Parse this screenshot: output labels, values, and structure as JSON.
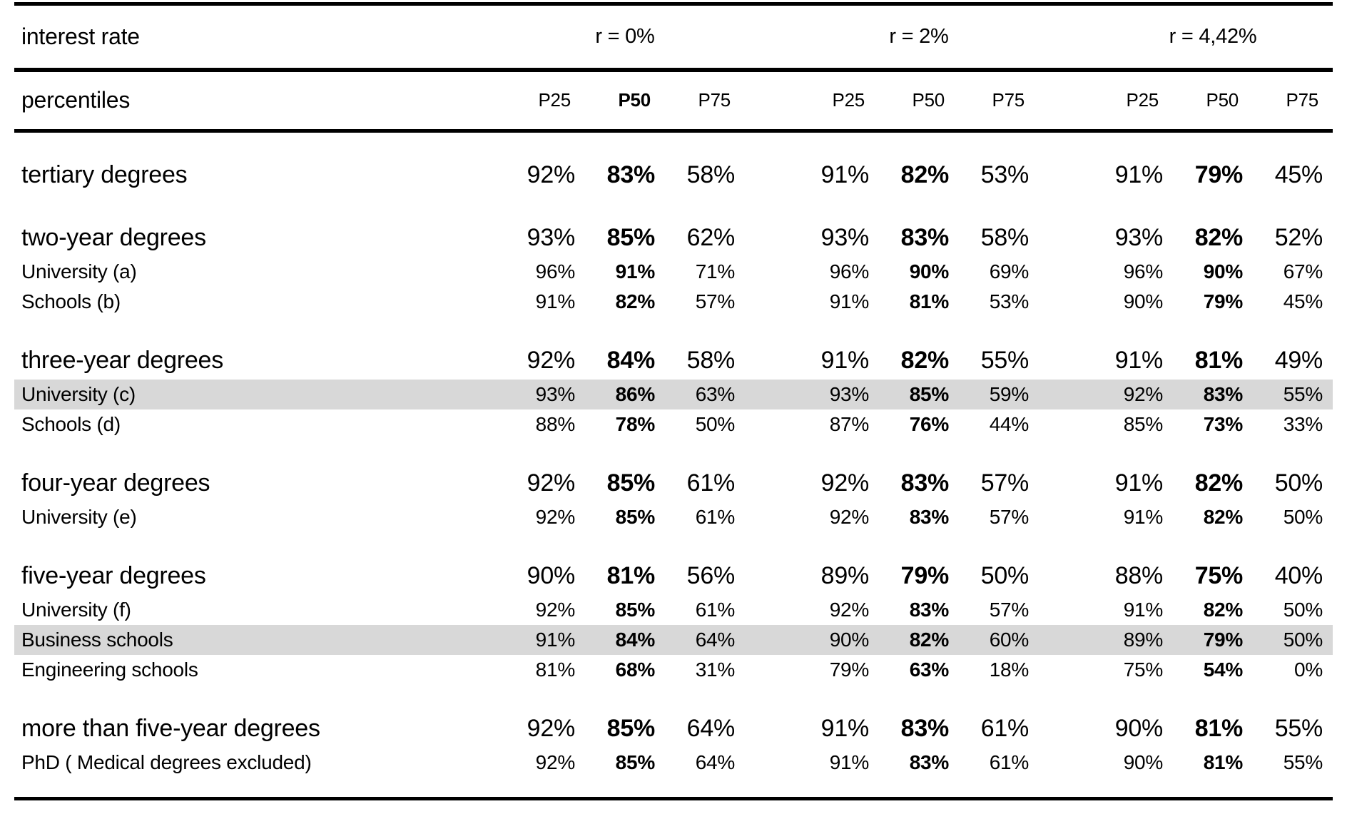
{
  "table": {
    "highlight_color": "#d8d8d8",
    "header": {
      "row1_label": "interest rate",
      "groups": [
        {
          "label": "r = 0%"
        },
        {
          "label": "r = 2%"
        },
        {
          "label": "r = 4,42%"
        }
      ],
      "row2_label": "percentiles",
      "percentile_cols": [
        {
          "label": "P25",
          "bold": false
        },
        {
          "label": "P50",
          "bold": true
        },
        {
          "label": "P75",
          "bold": false
        },
        {
          "label": "P25",
          "bold": false
        },
        {
          "label": "P50",
          "bold": false
        },
        {
          "label": "P75",
          "bold": false
        },
        {
          "label": "P25",
          "bold": false
        },
        {
          "label": "P50",
          "bold": false
        },
        {
          "label": "P75",
          "bold": false
        }
      ]
    },
    "sections": [
      {
        "rows": [
          {
            "label": "tertiary degrees",
            "type": "main",
            "highlight": false,
            "values": [
              "92%",
              "83%",
              "58%",
              "91%",
              "82%",
              "53%",
              "91%",
              "79%",
              "45%"
            ]
          }
        ]
      },
      {
        "rows": [
          {
            "label": "two-year degrees",
            "type": "main",
            "highlight": false,
            "values": [
              "93%",
              "85%",
              "62%",
              "93%",
              "83%",
              "58%",
              "93%",
              "82%",
              "52%"
            ]
          },
          {
            "label": "University (a)",
            "type": "sub",
            "highlight": false,
            "values": [
              "96%",
              "91%",
              "71%",
              "96%",
              "90%",
              "69%",
              "96%",
              "90%",
              "67%"
            ]
          },
          {
            "label": "Schools (b)",
            "type": "sub",
            "highlight": false,
            "values": [
              "91%",
              "82%",
              "57%",
              "91%",
              "81%",
              "53%",
              "90%",
              "79%",
              "45%"
            ]
          }
        ]
      },
      {
        "rows": [
          {
            "label": "three-year degrees",
            "type": "main",
            "highlight": false,
            "values": [
              "92%",
              "84%",
              "58%",
              "91%",
              "82%",
              "55%",
              "91%",
              "81%",
              "49%"
            ]
          },
          {
            "label": "University (c)",
            "type": "sub",
            "highlight": true,
            "values": [
              "93%",
              "86%",
              "63%",
              "93%",
              "85%",
              "59%",
              "92%",
              "83%",
              "55%"
            ]
          },
          {
            "label": "Schools (d)",
            "type": "sub",
            "highlight": false,
            "values": [
              "88%",
              "78%",
              "50%",
              "87%",
              "76%",
              "44%",
              "85%",
              "73%",
              "33%"
            ]
          }
        ]
      },
      {
        "rows": [
          {
            "label": "four-year degrees",
            "type": "main",
            "highlight": false,
            "values": [
              "92%",
              "85%",
              "61%",
              "92%",
              "83%",
              "57%",
              "91%",
              "82%",
              "50%"
            ]
          },
          {
            "label": "University (e)",
            "type": "sub",
            "highlight": false,
            "values": [
              "92%",
              "85%",
              "61%",
              "92%",
              "83%",
              "57%",
              "91%",
              "82%",
              "50%"
            ]
          }
        ]
      },
      {
        "rows": [
          {
            "label": "five-year degrees",
            "type": "main",
            "highlight": false,
            "values": [
              "90%",
              "81%",
              "56%",
              "89%",
              "79%",
              "50%",
              "88%",
              "75%",
              "40%"
            ]
          },
          {
            "label": "University (f)",
            "type": "sub",
            "highlight": false,
            "values": [
              "92%",
              "85%",
              "61%",
              "92%",
              "83%",
              "57%",
              "91%",
              "82%",
              "50%"
            ]
          },
          {
            "label": "Business schools",
            "type": "sub",
            "highlight": true,
            "values": [
              "91%",
              "84%",
              "64%",
              "90%",
              "82%",
              "60%",
              "89%",
              "79%",
              "50%"
            ]
          },
          {
            "label": "Engineering schools",
            "type": "sub",
            "highlight": false,
            "values": [
              "81%",
              "68%",
              "31%",
              "79%",
              "63%",
              "18%",
              "75%",
              "54%",
              "0%"
            ]
          }
        ]
      },
      {
        "rows": [
          {
            "label": "more than five-year degrees",
            "type": "main",
            "highlight": false,
            "values": [
              "92%",
              "85%",
              "64%",
              "91%",
              "83%",
              "61%",
              "90%",
              "81%",
              "55%"
            ]
          },
          {
            "label": "PhD ( Medical degrees excluded)",
            "type": "sub",
            "highlight": false,
            "values": [
              "92%",
              "85%",
              "64%",
              "91%",
              "83%",
              "61%",
              "90%",
              "81%",
              "55%"
            ]
          }
        ]
      }
    ]
  }
}
